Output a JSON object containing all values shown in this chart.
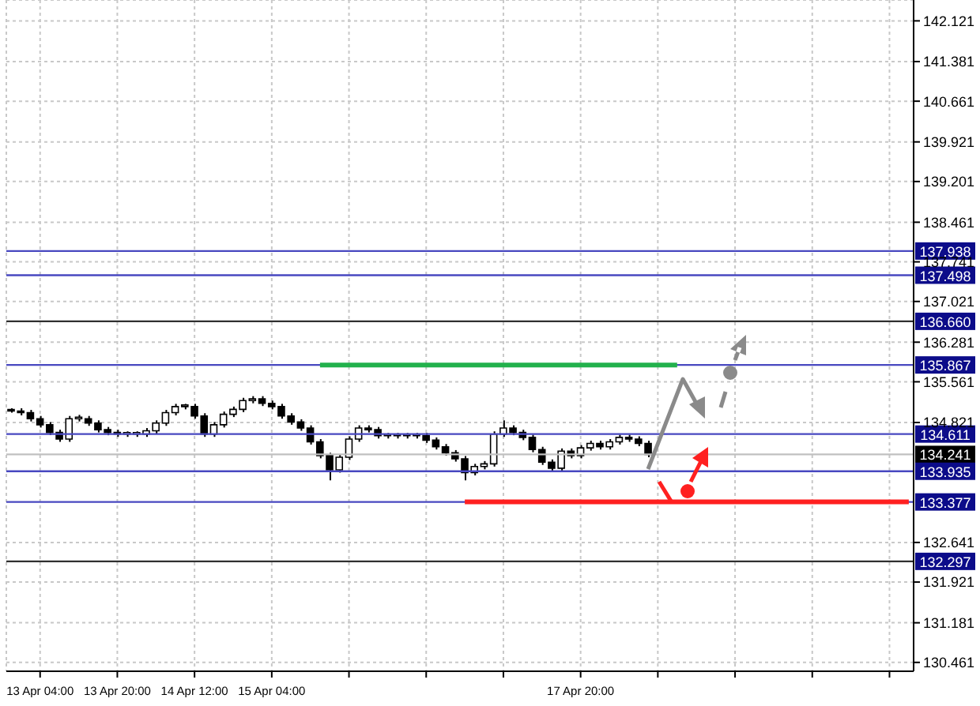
{
  "chart_data": {
    "type": "candlestick",
    "categories": [
      null,
      null,
      null,
      "13 Apr 04:00",
      null,
      null,
      null,
      null,
      null,
      null,
      null,
      "13 Apr 20:00",
      null,
      null,
      null,
      null,
      null,
      null,
      null,
      "14 Apr 12:00",
      null,
      null,
      null,
      null,
      null,
      null,
      null,
      "15 Apr 04:00",
      null,
      null,
      null,
      null,
      null,
      null,
      null,
      null,
      null,
      null,
      null,
      null,
      null,
      null,
      null,
      null,
      null,
      null,
      null,
      null,
      null,
      null,
      null,
      null,
      null,
      null,
      null,
      null,
      null,
      null,
      null,
      "17 Apr 20:00",
      null,
      null,
      null,
      null,
      null,
      null,
      null,
      null,
      null,
      null,
      null,
      null,
      null,
      null,
      null,
      null,
      null,
      null,
      null,
      null,
      null,
      null,
      null,
      null,
      null,
      null,
      null,
      null,
      null,
      null,
      null,
      null,
      null,
      null
    ],
    "ohlc": [
      [
        135.05,
        135.08,
        135.0,
        135.03
      ],
      [
        135.03,
        135.08,
        134.95,
        135.0
      ],
      [
        135.0,
        135.05,
        134.84,
        134.89
      ],
      [
        134.89,
        134.94,
        134.73,
        134.78
      ],
      [
        134.78,
        134.83,
        134.59,
        134.64
      ],
      [
        134.64,
        134.69,
        134.47,
        134.52
      ],
      [
        134.52,
        134.94,
        134.47,
        134.89
      ],
      [
        134.89,
        134.96,
        134.84,
        134.89
      ],
      [
        134.89,
        134.94,
        134.76,
        134.81
      ],
      [
        134.81,
        134.86,
        134.64,
        134.69
      ],
      [
        134.69,
        134.74,
        134.59,
        134.64
      ],
      [
        134.64,
        134.69,
        134.56,
        134.61
      ],
      [
        134.61,
        134.66,
        134.56,
        134.61
      ],
      [
        134.61,
        134.66,
        134.56,
        134.61
      ],
      [
        134.61,
        134.72,
        134.56,
        134.67
      ],
      [
        134.67,
        134.86,
        134.62,
        134.81
      ],
      [
        134.81,
        135.05,
        134.76,
        135.0
      ],
      [
        135.0,
        135.16,
        134.95,
        135.11
      ],
      [
        135.11,
        135.16,
        135.06,
        135.11
      ],
      [
        135.11,
        135.16,
        134.89,
        134.94
      ],
      [
        134.94,
        134.99,
        134.56,
        134.61
      ],
      [
        134.61,
        134.83,
        134.56,
        134.78
      ],
      [
        134.78,
        135.02,
        134.73,
        134.97
      ],
      [
        134.97,
        135.11,
        134.92,
        135.06
      ],
      [
        135.06,
        135.27,
        135.01,
        135.22
      ],
      [
        135.22,
        135.3,
        135.17,
        135.25
      ],
      [
        135.25,
        135.3,
        135.12,
        135.17
      ],
      [
        135.17,
        135.22,
        135.06,
        135.11
      ],
      [
        135.11,
        135.16,
        134.89,
        134.94
      ],
      [
        134.94,
        134.99,
        134.78,
        134.83
      ],
      [
        134.83,
        134.88,
        134.67,
        134.72
      ],
      [
        134.72,
        134.77,
        134.42,
        134.47
      ],
      [
        134.47,
        134.52,
        134.17,
        134.22
      ],
      [
        134.22,
        134.27,
        133.77,
        133.96
      ],
      [
        133.96,
        134.24,
        133.91,
        134.19
      ],
      [
        134.19,
        134.57,
        134.14,
        134.52
      ],
      [
        134.52,
        134.77,
        134.47,
        134.72
      ],
      [
        134.72,
        134.77,
        134.64,
        134.69
      ],
      [
        134.69,
        134.74,
        134.53,
        134.58
      ],
      [
        134.58,
        134.63,
        134.53,
        134.58
      ],
      [
        134.58,
        134.63,
        134.53,
        134.58
      ],
      [
        134.58,
        134.63,
        134.53,
        134.58
      ],
      [
        134.58,
        134.63,
        134.53,
        134.58
      ],
      [
        134.58,
        134.63,
        134.45,
        134.5
      ],
      [
        134.5,
        134.55,
        134.33,
        134.38
      ],
      [
        134.38,
        134.43,
        134.22,
        134.27
      ],
      [
        134.27,
        134.32,
        134.11,
        134.16
      ],
      [
        134.16,
        134.21,
        133.77,
        133.91
      ],
      [
        133.91,
        134.07,
        133.86,
        134.02
      ],
      [
        134.02,
        134.12,
        133.97,
        134.07
      ],
      [
        134.07,
        134.66,
        134.02,
        134.61
      ],
      [
        134.61,
        134.86,
        134.56,
        134.72
      ],
      [
        134.72,
        134.77,
        134.59,
        134.64
      ],
      [
        134.64,
        134.69,
        134.5,
        134.55
      ],
      [
        134.55,
        134.6,
        134.28,
        134.33
      ],
      [
        134.33,
        134.38,
        134.05,
        134.1
      ],
      [
        134.1,
        134.15,
        133.94,
        133.99
      ],
      [
        133.99,
        134.35,
        133.94,
        134.3
      ],
      [
        134.3,
        134.35,
        134.17,
        134.22
      ],
      [
        134.22,
        134.41,
        134.17,
        134.36
      ],
      [
        134.36,
        134.49,
        134.31,
        134.44
      ],
      [
        134.44,
        134.49,
        134.33,
        134.38
      ],
      [
        134.38,
        134.52,
        134.33,
        134.47
      ],
      [
        134.47,
        134.6,
        134.42,
        134.55
      ],
      [
        134.55,
        134.6,
        134.47,
        134.52
      ],
      [
        134.52,
        134.57,
        134.39,
        134.44
      ],
      [
        134.44,
        134.49,
        134.19,
        134.24
      ],
      null,
      null,
      null,
      null,
      null,
      null,
      null,
      null,
      null,
      null,
      null,
      null,
      null,
      null,
      null,
      null,
      null,
      null,
      null,
      null,
      null,
      null,
      null,
      null,
      null,
      null,
      null
    ],
    "series": [
      {
        "type": "line",
        "color": "#22b14c",
        "values": [
          null,
          null,
          null,
          null,
          null,
          null,
          null,
          null,
          null,
          null,
          null,
          null,
          null,
          null,
          null,
          null,
          null,
          null,
          null,
          null,
          null,
          null,
          null,
          null,
          null,
          null,
          null,
          null,
          null,
          null,
          null,
          null,
          135.867,
          135.867,
          135.867,
          135.867,
          135.867,
          135.867,
          135.867,
          135.867,
          135.867,
          135.867,
          135.867,
          135.867,
          135.867,
          135.867,
          135.867,
          135.867,
          135.867,
          135.867,
          135.867,
          135.867,
          135.867,
          135.867,
          135.867,
          135.867,
          135.867,
          135.867,
          135.867,
          135.867,
          135.867,
          135.867,
          135.867,
          135.867,
          135.867,
          135.867,
          135.867,
          135.867,
          135.867,
          135.867,
          null,
          null,
          null,
          null,
          null,
          null,
          null,
          null,
          null,
          null,
          null,
          null,
          null,
          null,
          null,
          null,
          null,
          null,
          null,
          null,
          null,
          null,
          null,
          null
        ]
      },
      {
        "type": "line",
        "color": "#ff2020",
        "values": [
          null,
          null,
          null,
          null,
          null,
          null,
          null,
          null,
          null,
          null,
          null,
          null,
          null,
          null,
          null,
          null,
          null,
          null,
          null,
          null,
          null,
          null,
          null,
          null,
          null,
          null,
          null,
          null,
          null,
          null,
          null,
          null,
          null,
          null,
          null,
          null,
          null,
          null,
          null,
          null,
          null,
          null,
          null,
          null,
          null,
          null,
          null,
          133.377,
          133.377,
          133.377,
          133.377,
          133.377,
          133.377,
          133.377,
          133.377,
          133.377,
          133.377,
          133.377,
          133.377,
          133.377,
          133.377,
          133.377,
          133.377,
          133.377,
          133.377,
          133.377,
          133.377,
          133.377,
          133.377,
          133.377,
          133.377,
          133.377,
          133.377,
          133.377,
          133.377,
          133.377,
          133.377,
          133.377,
          133.377,
          133.377,
          133.377,
          133.377,
          133.377,
          133.377,
          133.377,
          133.377,
          133.377,
          133.377,
          133.377,
          133.377,
          133.377,
          133.377,
          133.377,
          133.377
        ]
      }
    ],
    "ylim": [
      130.3,
      142.5
    ],
    "yticks": [
      142.121,
      141.381,
      140.661,
      139.921,
      139.201,
      138.461,
      137.741,
      137.021,
      136.281,
      135.561,
      134.821,
      132.641,
      131.921,
      131.181,
      130.461
    ],
    "ref_lines": [
      {
        "axis": "y",
        "value": 137.938,
        "label": "137.938",
        "color": "#4848c0"
      },
      {
        "axis": "y",
        "value": 137.498,
        "label": "137.498",
        "color": "#4848c0"
      },
      {
        "axis": "y",
        "value": 136.66,
        "label": "136.660",
        "color": "#303030"
      },
      {
        "axis": "y",
        "value": 135.867,
        "label": "135.867",
        "color": "#4848c0"
      },
      {
        "axis": "y",
        "value": 134.611,
        "label": "134.611",
        "color": "#4848c0"
      },
      {
        "axis": "y",
        "value": 134.241,
        "label": "134.241",
        "color": "#c0c0c0"
      },
      {
        "axis": "y",
        "value": 133.935,
        "label": "133.935",
        "color": "#4848c0"
      },
      {
        "axis": "y",
        "value": 133.377,
        "label": "133.377",
        "color": "#4848c0"
      },
      {
        "axis": "y",
        "value": 132.297,
        "label": "132.297",
        "color": "#303030"
      }
    ],
    "grid": true,
    "marker": "none",
    "line_style": "solid"
  }
}
